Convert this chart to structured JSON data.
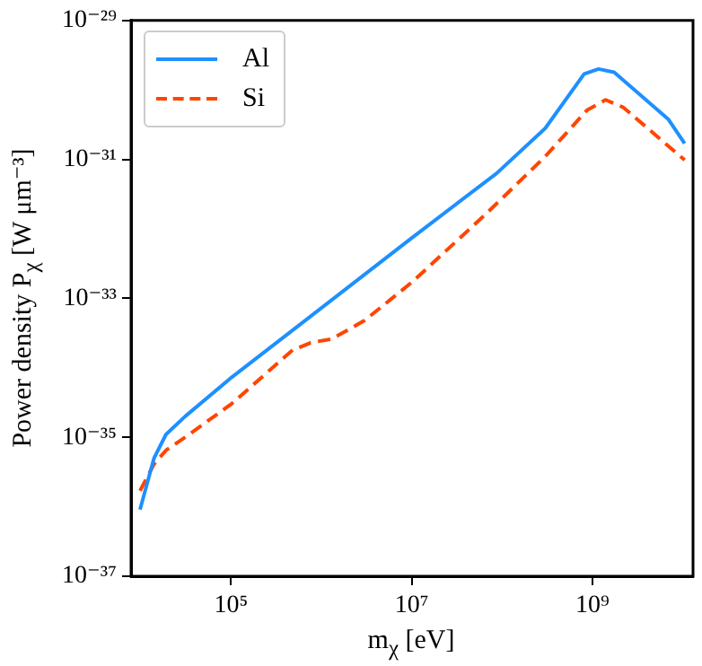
{
  "chart_data": {
    "type": "line",
    "xlabel": "m$_{χ}$ [eV]",
    "ylabel": "Power density P$_{χ}$ [W μm⁻³]",
    "log": "xy",
    "legend": "top left",
    "marker": "none",
    "xlim": [
      7800,
      13000000000.0
    ],
    "xticks": [
      {
        "value": 100000.0,
        "label": "10⁵"
      },
      {
        "value": 10000000.0,
        "label": "10⁷"
      },
      {
        "value": 1000000000.0,
        "label": "10⁹"
      }
    ],
    "ylim": [
      1e-37,
      1e-29
    ],
    "yticks": [
      {
        "value": 1e-37,
        "label": "10⁻³⁷"
      },
      {
        "value": 1e-35,
        "label": "10⁻³⁵"
      },
      {
        "value": 1e-33,
        "label": "10⁻³³"
      },
      {
        "value": 1e-31,
        "label": "10⁻³¹"
      },
      {
        "value": 1e-29,
        "label": "10⁻²⁹"
      }
    ],
    "series": [
      {
        "name": "Al",
        "color": "#1e90ff",
        "line_style": "solid",
        "x": [
          9800,
          14000,
          19000,
          31000,
          100000,
          660000,
          10000000.0,
          87000000.0,
          300000000.0,
          810000000.0,
          1170000000.0,
          1740000000.0,
          6900000000.0,
          10500000000.0
        ],
        "values": [
          9.1e-37,
          5e-36,
          1.1e-35,
          2e-35,
          7.2e-35,
          4.8e-34,
          7.4e-33,
          6.3e-32,
          2.8e-31,
          1.7e-30,
          2e-30,
          1.8e-30,
          3.8e-31,
          1.7e-31
        ]
      },
      {
        "name": "Si",
        "color": "#ff4500",
        "line_style": "dashed",
        "x": [
          9800,
          14000,
          19000,
          31000,
          100000,
          480000,
          760000,
          1300000.0,
          3000000.0,
          10000000.0,
          65000000.0,
          300000000.0,
          870000000.0,
          1400000000.0,
          2200000000.0,
          10500000000.0
        ],
        "values": [
          1.7e-36,
          4.1e-36,
          6.5e-36,
          1e-35,
          3e-35,
          1.8e-34,
          2.3e-34,
          2.6e-34,
          4.8e-34,
          1.7e-33,
          1.6e-32,
          1.1e-31,
          5.1e-31,
          7.2e-31,
          5.6e-31,
          9.8e-32
        ]
      }
    ]
  }
}
